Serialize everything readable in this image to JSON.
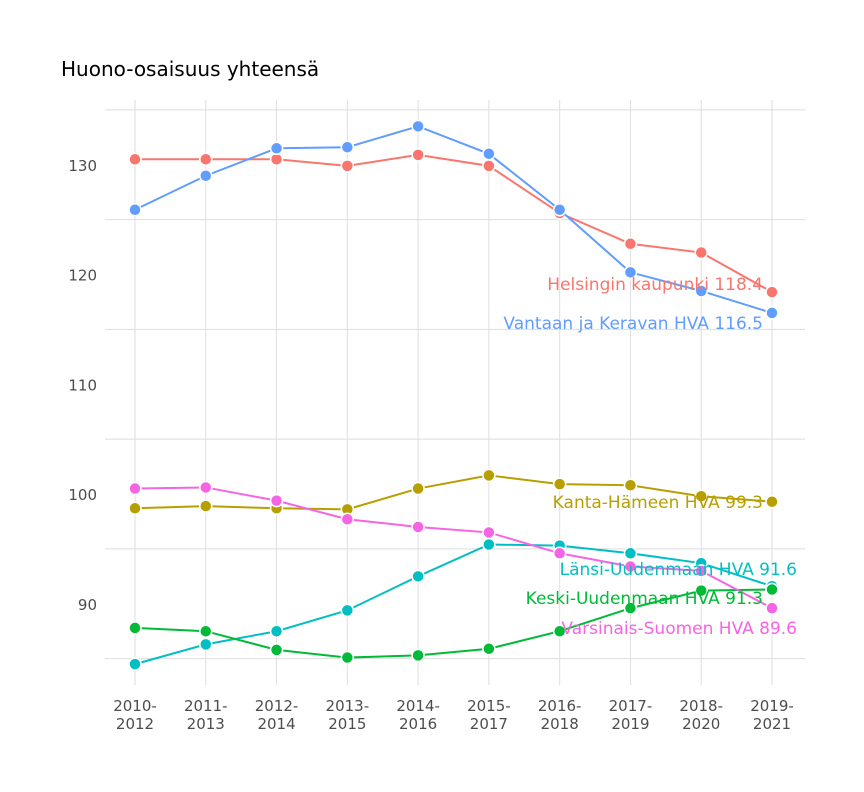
{
  "chart_data": {
    "type": "line",
    "title": "Huono-osaisuus yhteensä",
    "xlabel": "",
    "ylabel": "",
    "categories": [
      "2010-\n2012",
      "2011-\n2013",
      "2012-\n2014",
      "2013-\n2015",
      "2014-\n2016",
      "2015-\n2017",
      "2016-\n2018",
      "2017-\n2019",
      "2018-\n2020",
      "2019-\n2021"
    ],
    "yticks": [
      90,
      100,
      110,
      120,
      130
    ],
    "ylim": [
      82.6,
      135.9
    ],
    "grid": true,
    "legend": "none (direct labels at line ends)",
    "series": [
      {
        "name": "Helsingin kaupunki",
        "label": "Helsingin kaupunki 118.4",
        "color": "#F8766D",
        "values": [
          130.5,
          130.5,
          130.5,
          129.9,
          130.9,
          129.9,
          125.6,
          122.8,
          122.0,
          118.4
        ]
      },
      {
        "name": "Vantaan ja Keravan HVA",
        "label": "Vantaan ja Keravan HVA 116.5",
        "color": "#619CFF",
        "values": [
          125.9,
          129.0,
          131.5,
          131.6,
          133.5,
          131.0,
          125.9,
          120.2,
          118.5,
          116.5
        ]
      },
      {
        "name": "Kanta-Hämeen HVA",
        "label": "Kanta-Hämeen HVA 99.3",
        "color": "#B79F00",
        "values": [
          98.7,
          98.9,
          98.7,
          98.6,
          100.5,
          101.7,
          100.9,
          100.8,
          99.8,
          99.3
        ]
      },
      {
        "name": "Länsi-Uudenmaan HVA",
        "label": "Länsi-Uudenmaan HVA 91.6",
        "color": "#00BFC4",
        "values": [
          84.5,
          86.3,
          87.5,
          89.4,
          92.5,
          95.4,
          95.3,
          94.6,
          93.7,
          91.6
        ]
      },
      {
        "name": "Keski-Uudenmaan HVA",
        "label": "Keski-Uudenmaan HVA 91.3",
        "color": "#00BA38",
        "values": [
          87.8,
          87.5,
          85.8,
          85.1,
          85.3,
          85.9,
          87.5,
          89.6,
          91.2,
          91.3
        ]
      },
      {
        "name": "Varsinais-Suomen HVA",
        "label": "Varsinais-Suomen HVA 89.6",
        "color": "#F564E3",
        "values": [
          100.5,
          100.6,
          99.4,
          97.7,
          97.0,
          96.5,
          94.6,
          93.4,
          93.0,
          89.6
        ]
      }
    ]
  }
}
